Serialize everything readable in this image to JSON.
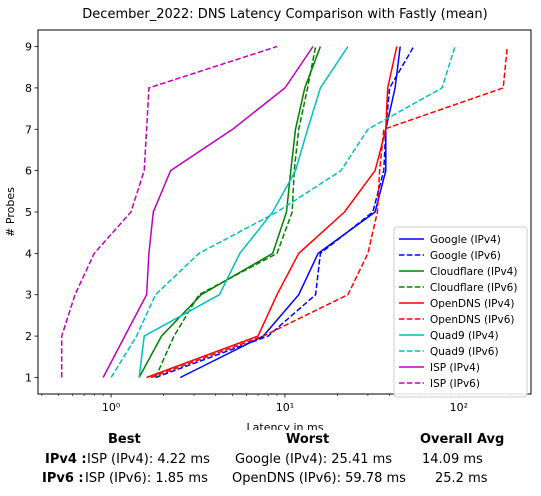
{
  "chart_data": {
    "type": "line",
    "title": "December_2022: DNS Latency Comparison with Fastly (mean)",
    "xlabel": "Latency in ms",
    "ylabel": "# Probes",
    "xscale": "log",
    "xlim": [
      0.38,
      260
    ],
    "ylim": [
      0.6,
      9.4
    ],
    "xticks": [
      {
        "v": 1,
        "label": "10⁰"
      },
      {
        "v": 10,
        "label": "10¹"
      },
      {
        "v": 100,
        "label": "10²"
      }
    ],
    "yticks": [
      1,
      2,
      3,
      4,
      5,
      6,
      7,
      8,
      9
    ],
    "grid": false,
    "legend_position": "lower-right",
    "series": [
      {
        "name": "Google (IPv4)",
        "color": "#0000ff",
        "dash": "solid",
        "x": [
          2.5,
          7.5,
          12,
          15.5,
          33,
          38,
          38,
          43,
          46
        ],
        "y": [
          1,
          2,
          3,
          4,
          5,
          6,
          7,
          8,
          9
        ]
      },
      {
        "name": "Google (IPv6)",
        "color": "#0000ff",
        "dash": "dashed",
        "x": [
          1.8,
          8,
          15,
          16,
          32,
          37,
          38,
          40,
          55
        ],
        "y": [
          1,
          2,
          3,
          4,
          5,
          6,
          7,
          8,
          9
        ]
      },
      {
        "name": "Cloudflare (IPv4)",
        "color": "#008000",
        "dash": "solid",
        "x": [
          1.45,
          1.95,
          3.3,
          8.5,
          10.2,
          10.8,
          11.5,
          13,
          16
        ],
        "y": [
          1,
          2,
          3,
          4,
          5,
          6,
          7,
          8,
          9
        ]
      },
      {
        "name": "Cloudflare (IPv6)",
        "color": "#008000",
        "dash": "dashed",
        "x": [
          1.8,
          2.3,
          3.2,
          9,
          11,
          11.3,
          12,
          13.5,
          15
        ],
        "y": [
          1,
          2,
          3,
          4,
          5,
          6,
          7,
          8,
          9
        ]
      },
      {
        "name": "OpenDNS (IPv4)",
        "color": "#ff0000",
        "dash": "solid",
        "x": [
          1.6,
          7,
          9,
          12,
          22,
          33,
          38,
          39,
          44
        ],
        "y": [
          1,
          2,
          3,
          4,
          5,
          6,
          7,
          8,
          9
        ]
      },
      {
        "name": "OpenDNS (IPv6)",
        "color": "#ff0000",
        "dash": "dashed",
        "x": [
          1.7,
          7.5,
          23,
          30,
          34,
          35,
          37,
          180,
          190
        ],
        "y": [
          1,
          2,
          3,
          4,
          5,
          6,
          7,
          8,
          9
        ]
      },
      {
        "name": "Quad9 (IPv4)",
        "color": "#00bfbf",
        "dash": "solid",
        "x": [
          1.45,
          1.55,
          4.2,
          5.5,
          8.5,
          11.5,
          13.5,
          16,
          23
        ],
        "y": [
          1,
          2,
          3,
          4,
          5,
          6,
          7,
          8,
          9
        ]
      },
      {
        "name": "Quad9 (IPv6)",
        "color": "#00bfbf",
        "dash": "dashed",
        "x": [
          1,
          1.4,
          1.8,
          3.2,
          9,
          21,
          30,
          80,
          95
        ],
        "y": [
          1,
          2,
          3,
          4,
          5,
          6,
          7,
          8,
          9
        ]
      },
      {
        "name": "ISP (IPv4)",
        "color": "#bf00bf",
        "dash": "solid",
        "x": [
          0.9,
          1.2,
          1.6,
          1.65,
          1.75,
          2.2,
          5,
          10,
          14.5
        ],
        "y": [
          1,
          2,
          3,
          4,
          5,
          6,
          7,
          8,
          9
        ]
      },
      {
        "name": "ISP (IPv6)",
        "color": "#bf00bf",
        "dash": "dashed",
        "x": [
          0.52,
          0.52,
          0.62,
          0.8,
          1.3,
          1.55,
          1.6,
          1.65,
          9
        ],
        "y": [
          1,
          2,
          3,
          4,
          5,
          6,
          7,
          8,
          9
        ]
      }
    ]
  },
  "summary": {
    "headers": {
      "best": "Best",
      "worst": "Worst",
      "avg": "Overall Avg"
    },
    "rows": [
      {
        "label": "IPv4 :",
        "best": "ISP (IPv4): 4.22 ms",
        "worst": "Google (IPv4): 25.41 ms",
        "avg": "14.09 ms"
      },
      {
        "label": "IPv6 :",
        "best": "ISP (IPv6): 1.85 ms",
        "worst": "OpenDNS (IPv6): 59.78 ms",
        "avg": "25.2 ms"
      }
    ]
  }
}
